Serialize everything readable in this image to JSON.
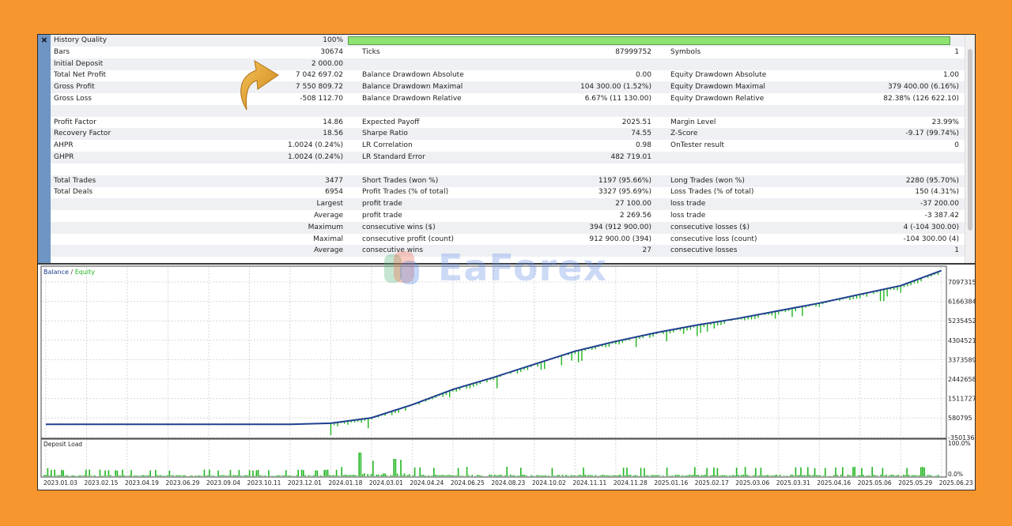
{
  "report": {
    "close_label": "×",
    "rows": [
      {
        "c": [
          "History Quality",
          "100%",
          "",
          "",
          "",
          ""
        ]
      },
      {
        "c": [
          "Bars",
          "30674",
          "Ticks",
          "87999752",
          "Symbols",
          "1"
        ]
      },
      {
        "c": [
          "Initial Deposit",
          "2 000.00",
          "",
          "",
          "",
          ""
        ]
      },
      {
        "c": [
          "Total Net Profit",
          "7 042 697.02",
          "Balance Drawdown Absolute",
          "0.00",
          "Equity Drawdown Absolute",
          "1.00"
        ]
      },
      {
        "c": [
          "Gross Profit",
          "7 550 809.72",
          "Balance Drawdown Maximal",
          "104 300.00 (1.52%)",
          "Equity Drawdown Maximal",
          "379 400.00 (6.16%)"
        ]
      },
      {
        "c": [
          "Gross Loss",
          "-508 112.70",
          "Balance Drawdown Relative",
          "6.67% (11 130.00)",
          "Equity Drawdown Relative",
          "82.38% (126 622.10)"
        ]
      },
      {
        "c": [
          "",
          "",
          "",
          "",
          "",
          ""
        ]
      },
      {
        "c": [
          "Profit Factor",
          "14.86",
          "Expected Payoff",
          "2025.51",
          "Margin Level",
          "23.99%"
        ]
      },
      {
        "c": [
          "Recovery Factor",
          "18.56",
          "Sharpe Ratio",
          "74.55",
          "Z-Score",
          "-9.17 (99.74%)"
        ]
      },
      {
        "c": [
          "AHPR",
          "1.0024 (0.24%)",
          "LR Correlation",
          "0.98",
          "OnTester result",
          "0"
        ]
      },
      {
        "c": [
          "GHPR",
          "1.0024 (0.24%)",
          "LR Standard Error",
          "482 719.01",
          "",
          ""
        ]
      },
      {
        "c": [
          "",
          "",
          "",
          "",
          "",
          ""
        ]
      },
      {
        "c": [
          "Total Trades",
          "3477",
          "Short Trades (won %)",
          "1197 (95.66%)",
          "Long Trades (won %)",
          "2280 (95.70%)"
        ]
      },
      {
        "c": [
          "Total Deals",
          "6954",
          "Profit Trades (% of total)",
          "3327 (95.69%)",
          "Loss Trades (% of total)",
          "150 (4.31%)"
        ]
      },
      {
        "c": [
          "",
          "Largest",
          "profit trade",
          "27 100.00",
          "loss trade",
          "-37 200.00"
        ]
      },
      {
        "c": [
          "",
          "Average",
          "profit trade",
          "2 269.56",
          "loss trade",
          "-3 387.42"
        ]
      },
      {
        "c": [
          "",
          "Maximum",
          "consecutive wins ($)",
          "394 (912 900.00)",
          "consecutive losses ($)",
          "4 (-104 300.00)"
        ]
      },
      {
        "c": [
          "",
          "Maximal",
          "consecutive profit (count)",
          "912 900.00 (394)",
          "consecutive loss (count)",
          "-104 300.00 (4)"
        ]
      },
      {
        "c": [
          "",
          "Average",
          "consecutive wins",
          "27",
          "consecutive losses",
          "1"
        ]
      }
    ]
  },
  "watermark": "EaForex",
  "balance_chart": {
    "legend_balance": "Balance",
    "legend_sep": " / ",
    "legend_equity": "Equity",
    "balance_color": "#1F3F8F",
    "equity_color": "#1FB51F",
    "y_ticks": [
      "7097315",
      "6166384",
      "5235452",
      "4304521",
      "3373589",
      "2442658",
      "1511727",
      "580795",
      "-350136"
    ]
  },
  "load_chart": {
    "label": "Deposit Load",
    "y_ticks": [
      "100.0%",
      "0.0%"
    ],
    "bar_color": "#1FB51F"
  },
  "x_ticks": [
    "2023.01.03",
    "2023.02.15",
    "2023.04.19",
    "2023.06.29",
    "2023.09.04",
    "2023.10.11",
    "2023.12.01",
    "2024.01.18",
    "2024.03.01",
    "2024.04.24",
    "2024.06.25",
    "2024.08.23",
    "2024.10.02",
    "2024.11.11",
    "2024.11.28",
    "2025.01.16",
    "2025.02.17",
    "2025.03.06",
    "2025.03.31",
    "2025.04.16",
    "2025.05.06",
    "2025.05.29",
    "2025.06.23"
  ],
  "chart_data": [
    {
      "type": "line",
      "title": "",
      "legend": [
        "Balance",
        "Equity"
      ],
      "x": [
        "2023.01.03",
        "2023.06.29",
        "2023.12.01",
        "2024.01.18",
        "2024.03.01",
        "2024.04.24",
        "2024.06.25",
        "2024.08.23",
        "2024.10.02",
        "2024.11.11",
        "2024.11.28",
        "2025.01.16",
        "2025.02.17",
        "2025.03.06",
        "2025.03.31",
        "2025.04.16",
        "2025.05.06",
        "2025.05.29",
        "2025.06.23"
      ],
      "series": [
        {
          "name": "Balance",
          "values": [
            2000,
            2000,
            2000,
            50000,
            300000,
            900000,
            1600000,
            2150000,
            2750000,
            3350000,
            3800000,
            4200000,
            4550000,
            4850000,
            5200000,
            5550000,
            5950000,
            6350000,
            7040000
          ]
        }
      ],
      "ylim": [
        -350136,
        7097315
      ],
      "grid": true
    },
    {
      "type": "bar",
      "title": "Deposit Load",
      "ylim": [
        0,
        100
      ]
    }
  ]
}
